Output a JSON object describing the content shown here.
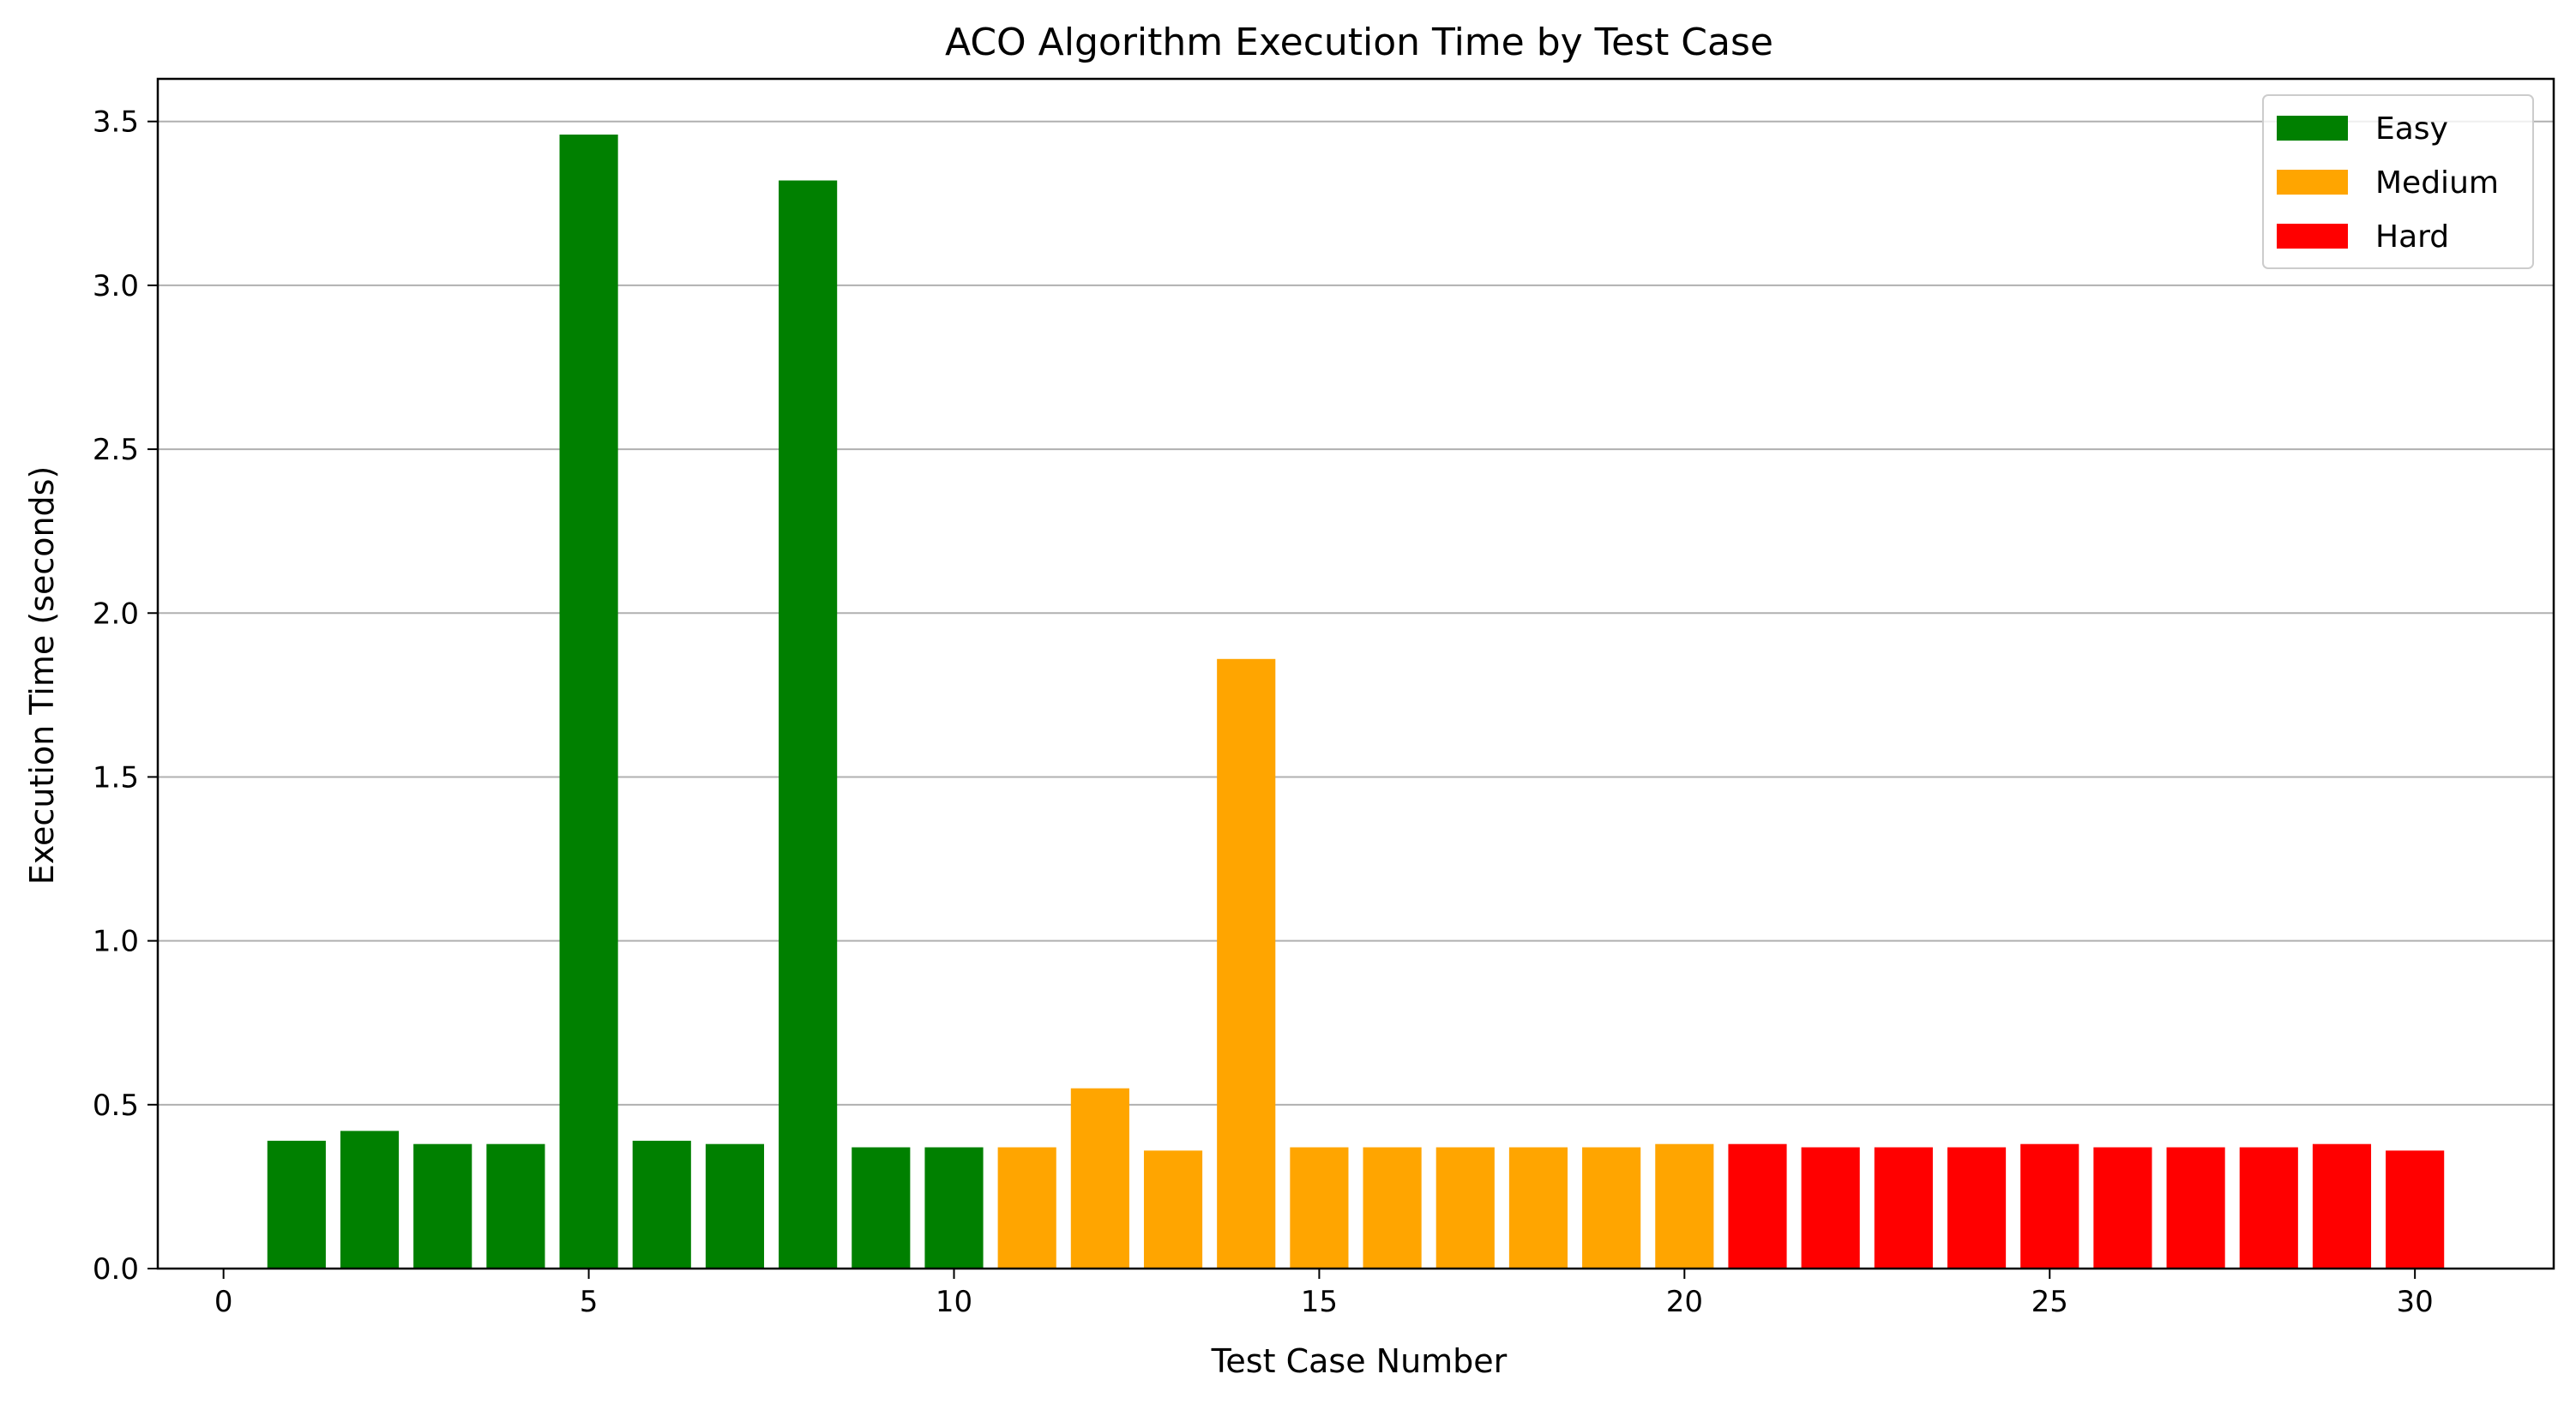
{
  "chart_data": {
    "type": "bar",
    "title": "ACO Algorithm Execution Time by Test Case",
    "xlabel": "Test Case Number",
    "ylabel": "Execution Time (seconds)",
    "xlim": [
      -0.9,
      31.9
    ],
    "ylim": [
      0,
      3.63
    ],
    "xticks": [
      "0",
      "5",
      "10",
      "15",
      "20",
      "25",
      "30"
    ],
    "yticks": [
      "0.0",
      "0.5",
      "1.0",
      "1.5",
      "2.0",
      "2.5",
      "3.0",
      "3.5"
    ],
    "grid": "horizontal",
    "legend_position": "top-right",
    "series": [
      {
        "name": "Easy",
        "color": "#008000",
        "x": [
          1,
          2,
          3,
          4,
          5,
          6,
          7,
          8,
          9,
          10
        ],
        "values": [
          0.39,
          0.42,
          0.38,
          0.38,
          3.46,
          0.39,
          0.38,
          3.32,
          0.37,
          0.37
        ]
      },
      {
        "name": "Medium",
        "color": "#FFA500",
        "x": [
          11,
          12,
          13,
          14,
          15,
          16,
          17,
          18,
          19,
          20
        ],
        "values": [
          0.37,
          0.55,
          0.36,
          1.86,
          0.37,
          0.37,
          0.37,
          0.37,
          0.37,
          0.38
        ]
      },
      {
        "name": "Hard",
        "color": "#FF0000",
        "x": [
          21,
          22,
          23,
          24,
          25,
          26,
          27,
          28,
          29,
          30
        ],
        "values": [
          0.38,
          0.37,
          0.37,
          0.37,
          0.38,
          0.37,
          0.37,
          0.37,
          0.38,
          0.36
        ]
      }
    ]
  }
}
